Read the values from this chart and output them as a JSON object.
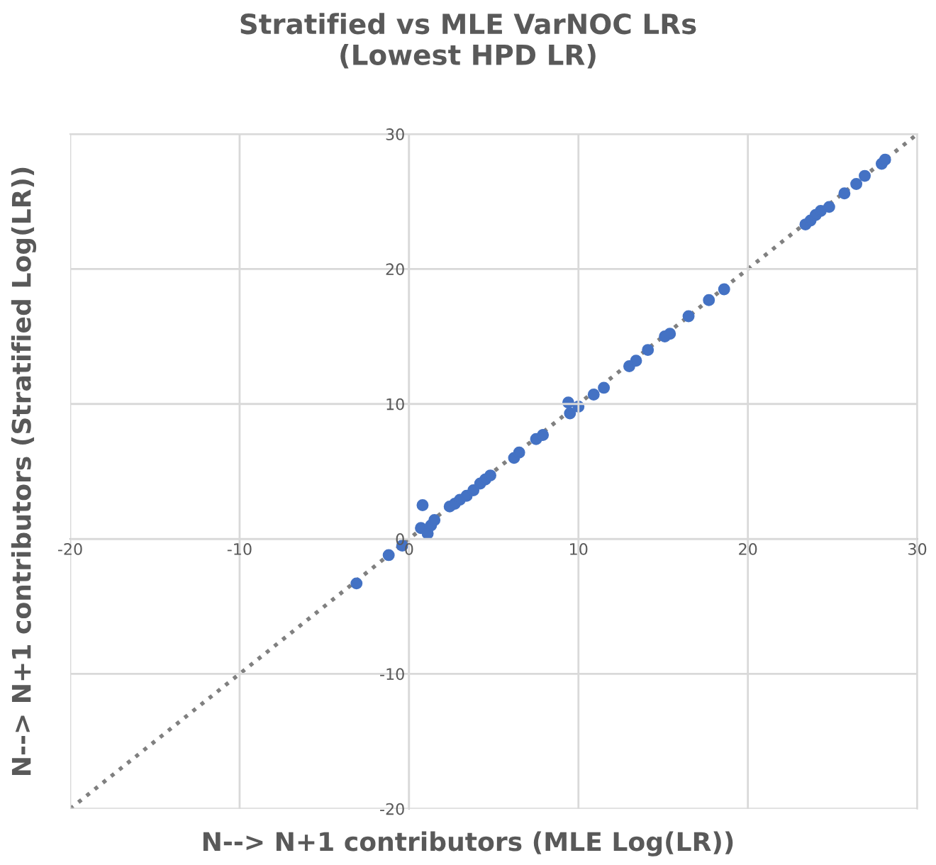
{
  "chart_data": {
    "type": "scatter",
    "title": "Stratified vs MLE VarNOC LRs\n(Lowest HPD LR)",
    "xlabel": "N--> N+1 contributors (MLE Log(LR))",
    "ylabel": "N--> N+1 contributors (Stratified Log(LR))",
    "xlim": [
      -20,
      30
    ],
    "ylim": [
      -20,
      30
    ],
    "xticks": [
      -20,
      -10,
      0,
      10,
      20,
      30
    ],
    "yticks": [
      -20,
      -10,
      0,
      10,
      20,
      30
    ],
    "grid": true,
    "marker": "circle",
    "series": [
      {
        "color": "#4472c4",
        "x": [
          -3.1,
          -1.2,
          -0.4,
          0.8,
          0.7,
          1.1,
          1.3,
          1.5,
          2.4,
          2.7,
          3.0,
          3.4,
          3.8,
          4.2,
          4.5,
          4.8,
          6.2,
          6.5,
          7.5,
          7.9,
          9.4,
          9.5,
          10.0,
          10.9,
          11.5,
          13.0,
          13.4,
          14.1,
          15.1,
          15.4,
          16.5,
          17.7,
          18.6,
          23.4,
          23.7,
          24.0,
          24.3,
          24.8,
          25.7,
          26.4,
          26.9,
          27.9,
          28.1
        ],
        "values": [
          -3.3,
          -1.2,
          -0.5,
          2.5,
          0.8,
          0.4,
          1.0,
          1.4,
          2.4,
          2.6,
          2.9,
          3.2,
          3.6,
          4.1,
          4.4,
          4.7,
          6.0,
          6.4,
          7.4,
          7.7,
          10.1,
          9.3,
          9.8,
          10.7,
          11.2,
          12.8,
          13.2,
          14.0,
          15.0,
          15.2,
          16.5,
          17.7,
          18.5,
          23.3,
          23.6,
          24.0,
          24.3,
          24.6,
          25.6,
          26.3,
          26.9,
          27.8,
          28.1
        ]
      },
      {
        "type": "line",
        "color": "#808080",
        "line_style": "dotted",
        "marker": "none",
        "x": [
          -20,
          30
        ],
        "values": [
          -20,
          30
        ]
      }
    ]
  }
}
